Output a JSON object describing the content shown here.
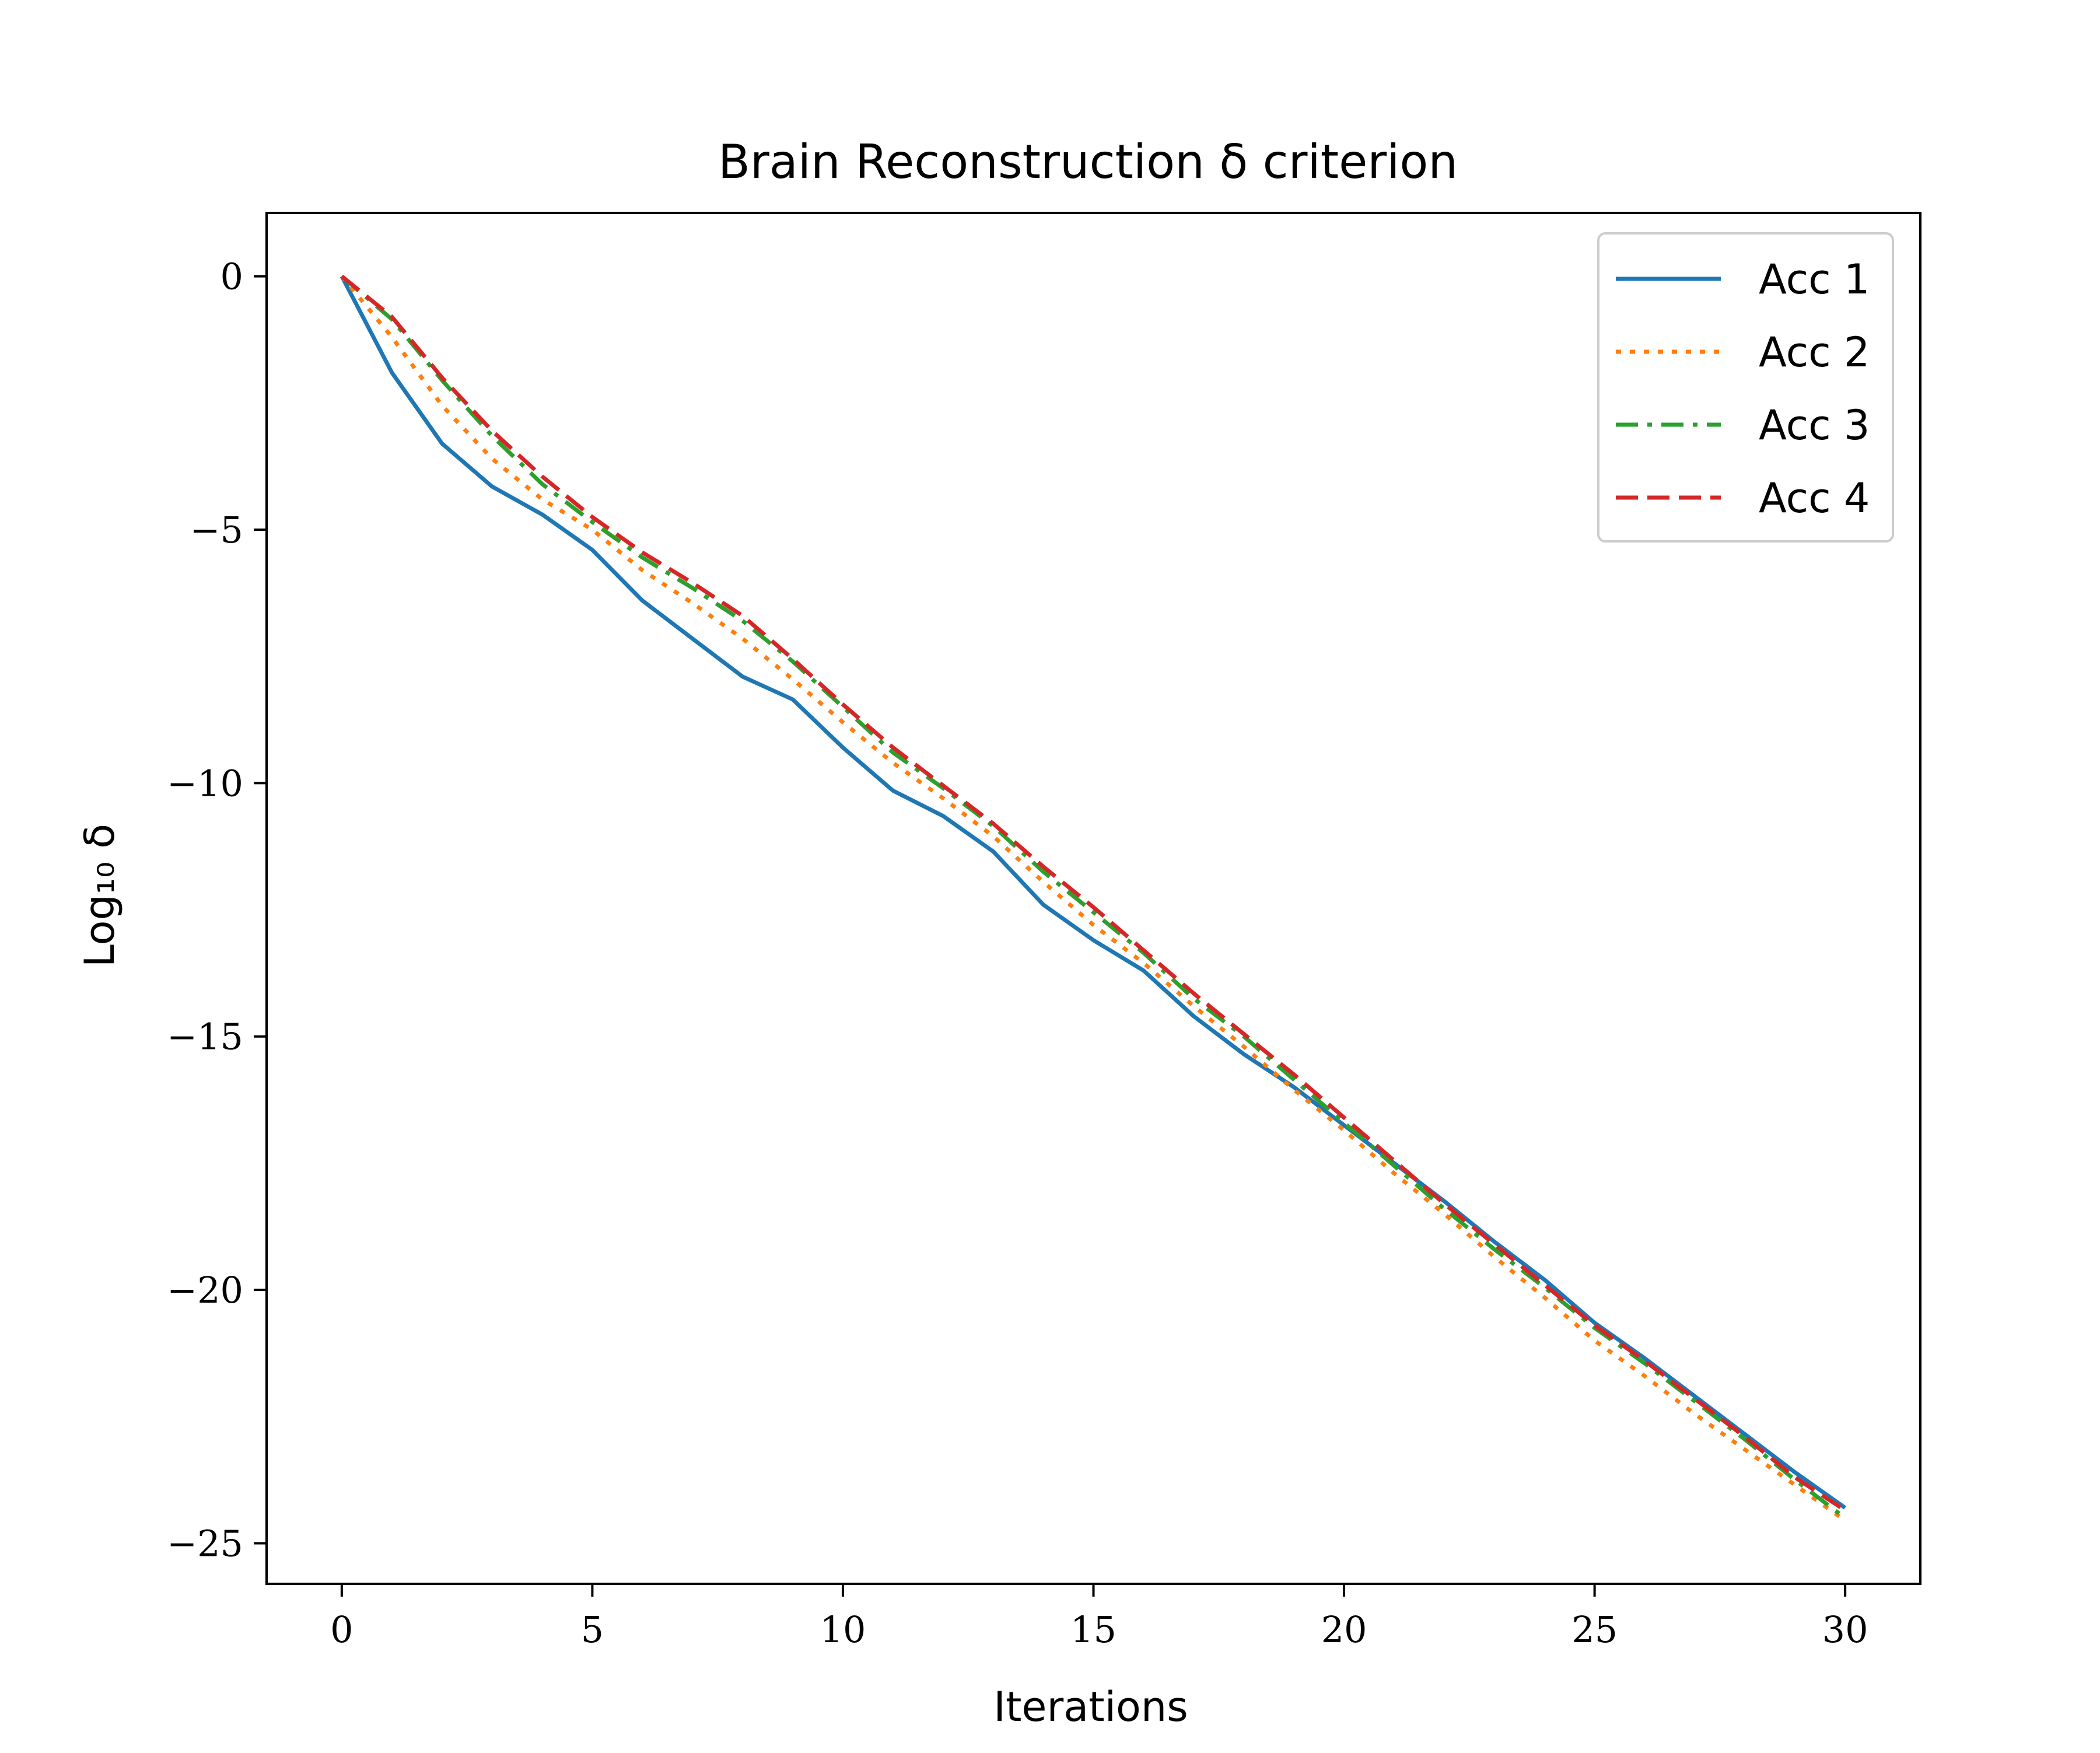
{
  "chart_data": {
    "type": "line",
    "title": "Brain Reconstruction δ criterion",
    "xlabel": "Iterations",
    "ylabel": "Log₁₀ δ",
    "xlim": [
      -1.5,
      31.5
    ],
    "ylim": [
      -25.8,
      1.25
    ],
    "xticks": [
      0,
      5,
      10,
      15,
      20,
      25,
      30
    ],
    "xtick_labels": [
      "0",
      "5",
      "10",
      "15",
      "20",
      "25",
      "30"
    ],
    "yticks": [
      0,
      -5,
      -10,
      -15,
      -20,
      -25
    ],
    "ytick_labels": [
      "0",
      "−5",
      "−10",
      "−15",
      "−20",
      "−25"
    ],
    "grid": false,
    "legend_position": "top-right",
    "x": [
      0,
      1,
      2,
      3,
      4,
      5,
      6,
      7,
      8,
      9,
      10,
      11,
      12,
      13,
      14,
      15,
      16,
      17,
      18,
      19,
      20,
      21,
      22,
      23,
      24,
      25,
      26,
      27,
      28,
      29,
      30
    ],
    "series": [
      {
        "name": "Acc 1",
        "color": "#1f77b4",
        "dash": "solid",
        "values": [
          0,
          -1.9,
          -3.3,
          -4.15,
          -4.7,
          -5.4,
          -6.4,
          -7.15,
          -7.9,
          -8.35,
          -9.3,
          -10.15,
          -10.65,
          -11.35,
          -12.4,
          -13.1,
          -13.7,
          -14.6,
          -15.35,
          -16.0,
          -16.75,
          -17.5,
          -18.25,
          -19.05,
          -19.8,
          -20.65,
          -21.35,
          -22.1,
          -22.85,
          -23.6,
          -24.3
        ]
      },
      {
        "name": "Acc 2",
        "color": "#ff7f0e",
        "dash": "dotted",
        "values": [
          0,
          -1.2,
          -2.55,
          -3.6,
          -4.4,
          -5.0,
          -5.8,
          -6.45,
          -7.15,
          -7.95,
          -8.8,
          -9.6,
          -10.3,
          -11.05,
          -11.95,
          -12.8,
          -13.55,
          -14.4,
          -15.2,
          -16.05,
          -16.85,
          -17.7,
          -18.5,
          -19.35,
          -20.15,
          -21.0,
          -21.7,
          -22.45,
          -23.15,
          -23.85,
          -24.55
        ]
      },
      {
        "name": "Acc 3",
        "color": "#2ca02c",
        "dash": "dashdot",
        "values": [
          0,
          -0.85,
          -2.05,
          -3.15,
          -4.1,
          -4.85,
          -5.55,
          -6.15,
          -6.8,
          -7.6,
          -8.5,
          -9.4,
          -10.1,
          -10.85,
          -11.75,
          -12.55,
          -13.35,
          -14.25,
          -15.0,
          -15.85,
          -16.7,
          -17.55,
          -18.4,
          -19.2,
          -19.95,
          -20.75,
          -21.45,
          -22.2,
          -22.95,
          -23.75,
          -24.5
        ]
      },
      {
        "name": "Acc 4",
        "color": "#d62728",
        "dash": "dashed",
        "values": [
          0,
          -0.8,
          -2.0,
          -3.05,
          -3.95,
          -4.75,
          -5.45,
          -6.05,
          -6.7,
          -7.55,
          -8.45,
          -9.3,
          -10.05,
          -10.8,
          -11.65,
          -12.45,
          -13.3,
          -14.15,
          -14.95,
          -15.75,
          -16.6,
          -17.45,
          -18.3,
          -19.1,
          -19.9,
          -20.7,
          -21.4,
          -22.15,
          -22.9,
          -23.7,
          -24.35
        ]
      }
    ]
  }
}
